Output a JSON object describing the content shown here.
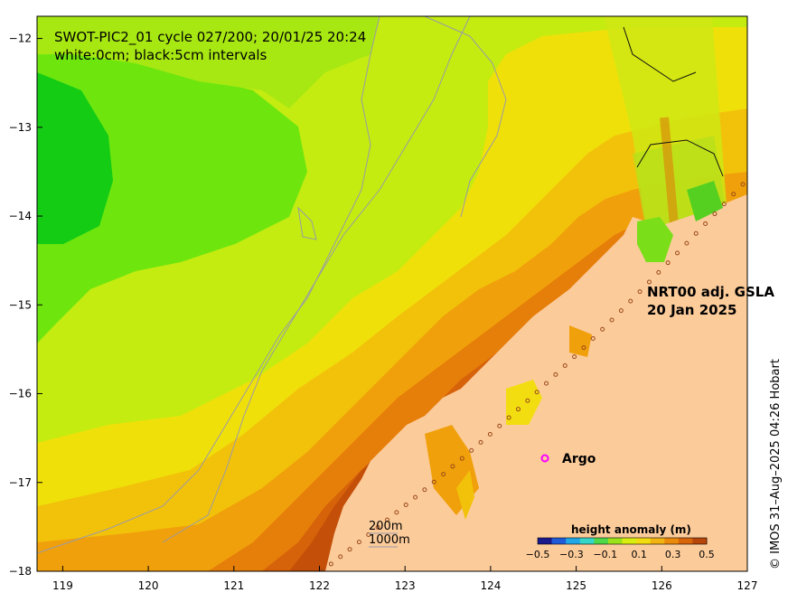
{
  "title": {
    "line1": "SWOT-PIC2_01 cycle 027/200; 20/01/25 20:24",
    "line2": "white:0cm; black:5cm intervals"
  },
  "product_label": {
    "line1": "NRT00 adj. GSLA",
    "line2": "20 Jan 2025"
  },
  "legend": {
    "argo_label": "Argo",
    "argo_color": "#ff00ff",
    "depth_labels": [
      "200m",
      "1000m"
    ],
    "colorbar_title": "height anomaly (m)",
    "colorbar_ticks": [
      "−0.5",
      "−0.3",
      "−0.1",
      "0.1",
      "0.3",
      "0.5"
    ]
  },
  "credit": "© IMOS 31–Aug–2025 04:26 Hobart",
  "axes": {
    "x_ticks": [
      "119",
      "120",
      "121",
      "122",
      "123",
      "124",
      "125",
      "126",
      "127"
    ],
    "y_ticks": [
      "−12",
      "−13",
      "−14",
      "−15",
      "−16",
      "−17",
      "−18"
    ],
    "lon_range": [
      118.7,
      127
    ],
    "lat_range": [
      -18,
      -11.75
    ]
  },
  "colors": {
    "land": "#fccb9a",
    "colorbar": [
      "#1a1a8c",
      "#1f5bd6",
      "#21a6e6",
      "#35d6c8",
      "#4fd84a",
      "#9be21a",
      "#d8ee10",
      "#f2dd10",
      "#f2b410",
      "#ec8a0c",
      "#d8650a",
      "#b8460a"
    ]
  }
}
